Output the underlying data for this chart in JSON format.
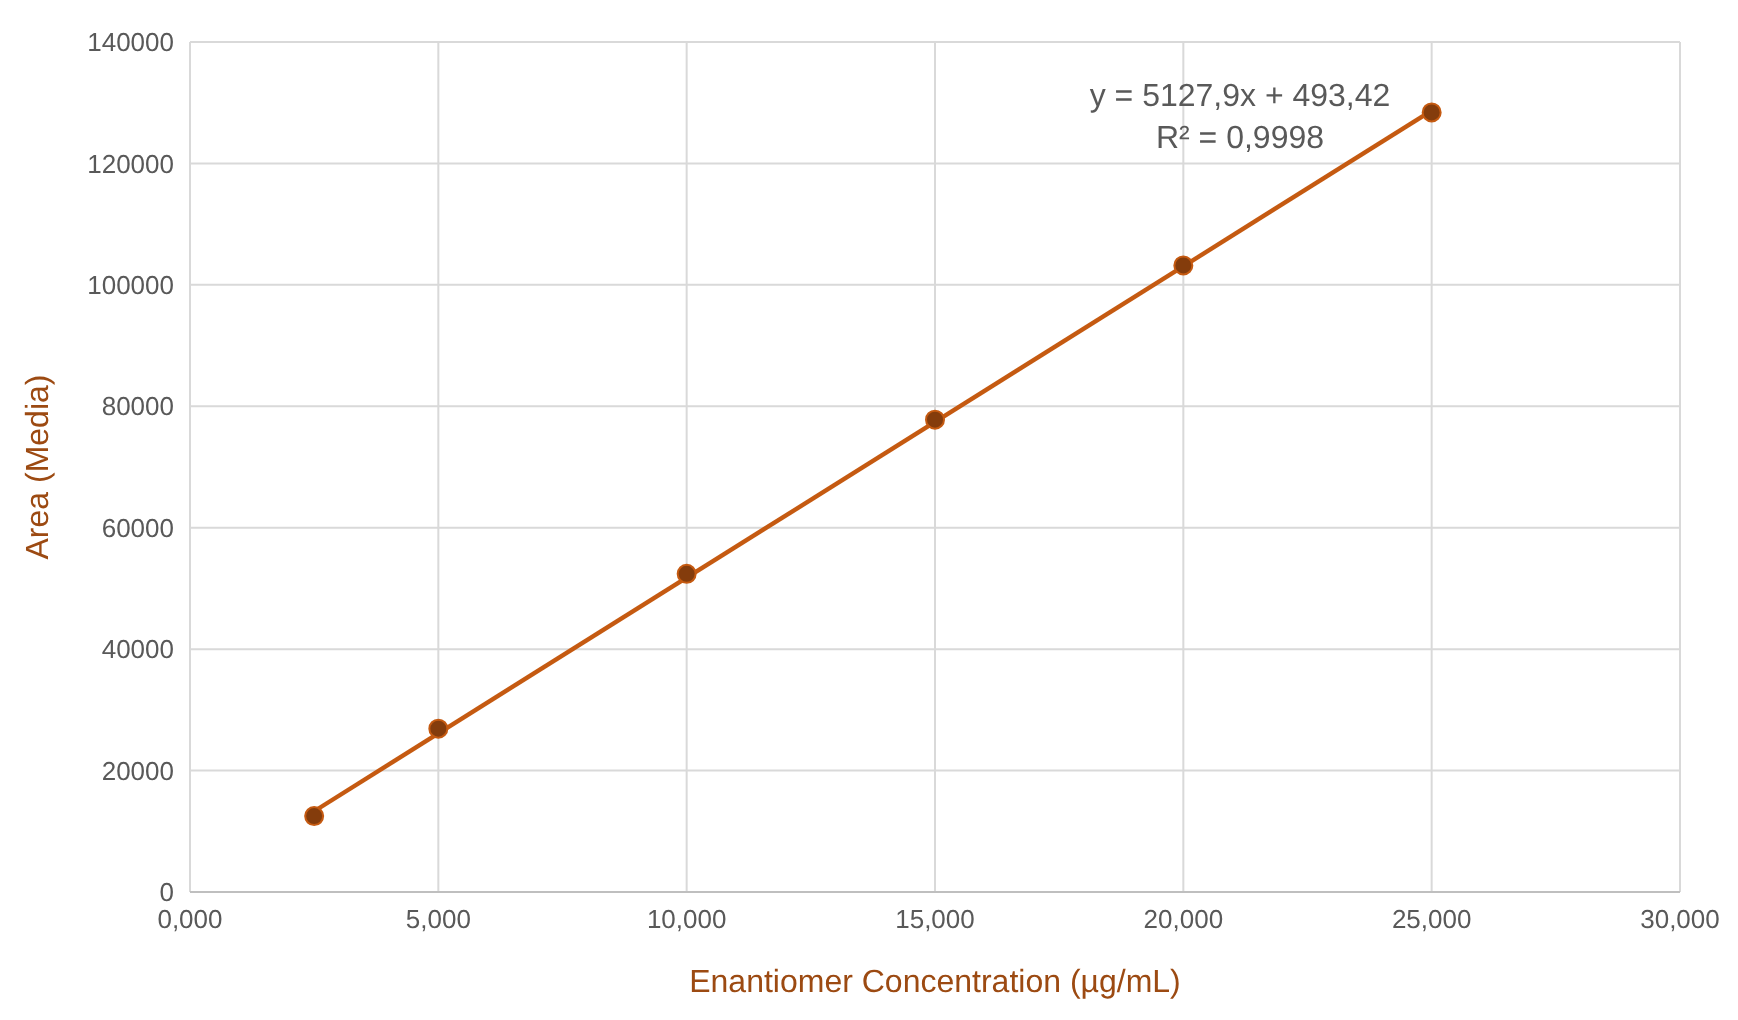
{
  "chart_data": {
    "type": "scatter",
    "xlabel": "Enantiomer Concentration (µg/mL)",
    "ylabel": "Area (Media)",
    "xlim": [
      0,
      30
    ],
    "ylim": [
      0,
      140000
    ],
    "xticks": [
      {
        "value": 0,
        "label": "0,000"
      },
      {
        "value": 5,
        "label": "5,000"
      },
      {
        "value": 10,
        "label": "10,000"
      },
      {
        "value": 15,
        "label": "15,000"
      },
      {
        "value": 20,
        "label": "20,000"
      },
      {
        "value": 25,
        "label": "25,000"
      },
      {
        "value": 30,
        "label": "30,000"
      }
    ],
    "yticks": [
      0,
      20000,
      40000,
      60000,
      80000,
      100000,
      120000,
      140000
    ],
    "grid": true,
    "marker": "circle",
    "annotations": [
      "y = 5127,9x + 493,42",
      "R² = 0,9998"
    ],
    "series": [
      {
        "type": "line",
        "color": "#c55a11",
        "x": [
          2.5,
          25
        ],
        "values": [
          13300,
          128700
        ],
        "marker": "none"
      },
      {
        "color": "#843c0c",
        "x": [
          2.5,
          5,
          10,
          15,
          20,
          25
        ],
        "values": [
          12500,
          26900,
          52400,
          77800,
          103200,
          128400
        ]
      }
    ]
  }
}
